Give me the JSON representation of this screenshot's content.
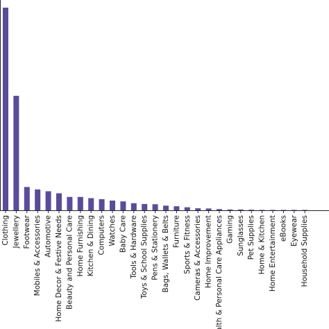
{
  "chart_data": {
    "type": "bar",
    "title": "",
    "xlabel": "",
    "ylabel": "",
    "color": "#5b4b9b",
    "categories": [
      "Clothing",
      "Jewellery",
      "Footwear",
      "Mobiles & Accessories",
      "Automotive",
      "Home Decor & Festive Needs",
      "Beauty and Personal Care",
      "Home Furnishing",
      "Kitchen & Dining",
      "Computers",
      "Watches",
      "Baby Care",
      "Tools & Hardware",
      "Toys & School Supplies",
      "Pens & Stationery",
      "Bags, Wallets & Belts",
      "Furniture",
      "Sports & Fitness",
      "Cameras & Accessories",
      "Home Improvement",
      "Health & Personal Care Appliances",
      "Gaming",
      "Sunglasses",
      "Pet Supplies",
      "Home & Kitchen",
      "Home Entertainment",
      "eBooks",
      "Eyewear",
      "Household Supplies"
    ],
    "values": [
      100,
      56.5,
      11.5,
      10.3,
      9.4,
      8.4,
      6.6,
      6.6,
      6.0,
      5.5,
      4.8,
      4.4,
      3.5,
      3.1,
      3.0,
      2.3,
      2.0,
      1.5,
      1.0,
      0.9,
      0.6,
      0.4,
      0.4,
      0.3,
      0.2,
      0.2,
      0.2,
      0.05,
      0.05
    ],
    "ylim": [
      0,
      100
    ],
    "grid": false,
    "legend": "none"
  }
}
